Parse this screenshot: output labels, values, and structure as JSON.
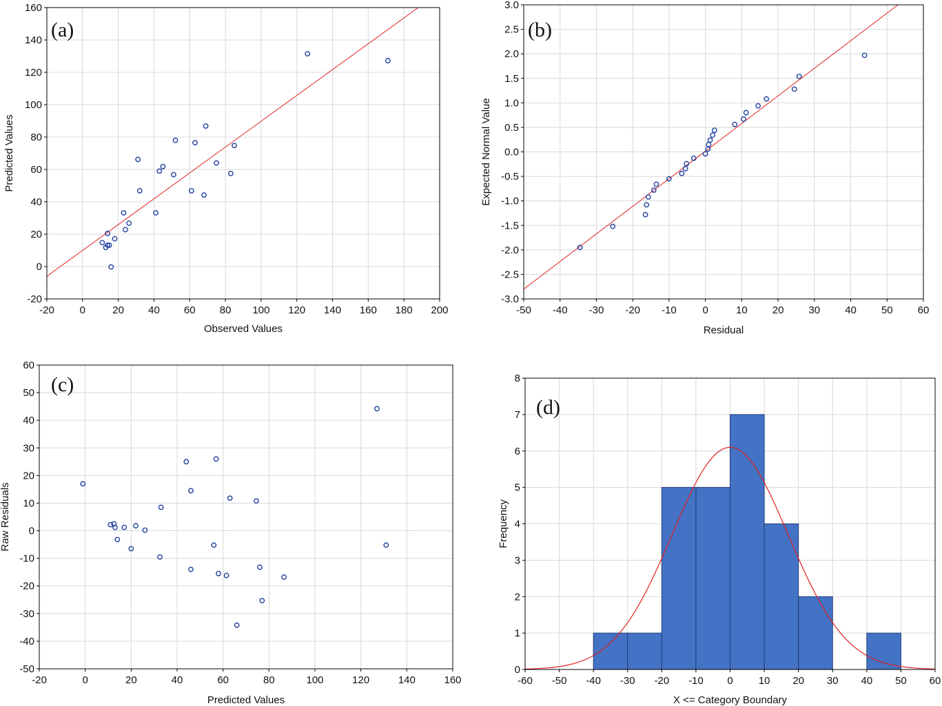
{
  "colors": {
    "points": "#1f3fa0",
    "fit_line": "#e02020",
    "bars": "#4472c4",
    "bar_edge": "#1f3e7a",
    "grid": "#d8d8d8"
  },
  "chart_data": [
    {
      "panel": "(a)",
      "type": "scatter",
      "xlabel": "Observed Values",
      "ylabel": "Predicted Values",
      "xlim": [
        -20,
        200
      ],
      "ylim": [
        -20,
        160
      ],
      "xticks": [
        -20,
        0,
        20,
        40,
        60,
        80,
        100,
        120,
        140,
        160,
        180,
        200
      ],
      "yticks": [
        -20,
        0,
        20,
        40,
        60,
        80,
        100,
        120,
        140,
        160
      ],
      "grid": true,
      "x": [
        11,
        13,
        14,
        15,
        16,
        14,
        18,
        23,
        24,
        26,
        31,
        32,
        41,
        43,
        45,
        51,
        52,
        61,
        63,
        68,
        69,
        75,
        83,
        85,
        126,
        171
      ],
      "y": [
        14.8,
        11.8,
        13.2,
        13.2,
        -0.2,
        20.5,
        17.2,
        33.2,
        22.8,
        26.8,
        66.2,
        46.8,
        33.2,
        59.0,
        61.8,
        56.8,
        78.0,
        46.8,
        76.5,
        44.2,
        86.8,
        64.0,
        57.5,
        74.8,
        131.5,
        127.2
      ],
      "fit_line": {
        "x": [
          -20,
          188
        ],
        "y": [
          -6,
          160
        ]
      }
    },
    {
      "panel": "(b)",
      "type": "scatter",
      "xlabel": "Residual",
      "ylabel": "Expected Normal Value",
      "xlim": [
        -50,
        60
      ],
      "ylim": [
        -3.0,
        3.0
      ],
      "xticks": [
        -50,
        -40,
        -30,
        -20,
        -10,
        0,
        10,
        20,
        30,
        40,
        50,
        60
      ],
      "yticks": [
        "-3.0",
        "-2.5",
        "-2.0",
        "-1.5",
        "-1.0",
        "-0.5",
        "0.0",
        "0.5",
        "1.0",
        "1.5",
        "2.0",
        "2.5",
        "3.0"
      ],
      "grid": true,
      "x": [
        -34.5,
        -25.5,
        -16.5,
        -16.2,
        -15.7,
        -14.2,
        -13.5,
        -10,
        -6.5,
        -5.5,
        -5.2,
        -3.2,
        0,
        0.7,
        0.9,
        1.3,
        2,
        2.5,
        8.1,
        10.5,
        11.2,
        14.5,
        16.8,
        24.5,
        25.8,
        43.8
      ],
      "y": [
        -1.95,
        -1.52,
        -1.28,
        -1.08,
        -0.92,
        -0.78,
        -0.66,
        -0.55,
        -0.44,
        -0.34,
        -0.24,
        -0.13,
        -0.04,
        0.06,
        0.15,
        0.24,
        0.34,
        0.44,
        0.56,
        0.67,
        0.8,
        0.94,
        1.08,
        1.28,
        1.54,
        1.97
      ],
      "fit_line": {
        "x": [
          -50,
          53
        ],
        "y": [
          -2.8,
          3.0
        ]
      }
    },
    {
      "panel": "(c)",
      "type": "scatter",
      "xlabel": "Predicted Values",
      "ylabel": "Raw Residuals",
      "xlim": [
        -20,
        160
      ],
      "ylim": [
        -50,
        60
      ],
      "xticks": [
        -20,
        0,
        20,
        40,
        60,
        80,
        100,
        120,
        140,
        160
      ],
      "yticks": [
        -50,
        -40,
        -30,
        -20,
        -10,
        0,
        10,
        20,
        30,
        40,
        50,
        60
      ],
      "grid": true,
      "x": [
        -1,
        11,
        12.5,
        13,
        14,
        17,
        20,
        22,
        26,
        32.5,
        33,
        44,
        46,
        46,
        56,
        57,
        58,
        61.5,
        63,
        66,
        74.5,
        76,
        77,
        86.5,
        127,
        131
      ],
      "y": [
        17,
        2.2,
        2.5,
        1.2,
        -3.2,
        1.2,
        -6.5,
        1.8,
        0.2,
        -9.5,
        8.5,
        25,
        14.5,
        -14,
        -5.2,
        26,
        -15.5,
        -16.2,
        11.8,
        -34.2,
        10.8,
        -13.2,
        -25.3,
        -16.8,
        44.2,
        -5.2
      ]
    },
    {
      "panel": "(d)",
      "type": "bar",
      "xlabel": "X <= Category Boundary",
      "ylabel": "Frequency",
      "xlim": [
        -60,
        60
      ],
      "ylim": [
        0,
        8
      ],
      "xticks": [
        -60,
        -50,
        -40,
        -30,
        -20,
        -10,
        0,
        10,
        20,
        30,
        40,
        50,
        60
      ],
      "yticks": [
        0,
        1,
        2,
        3,
        4,
        5,
        6,
        7,
        8
      ],
      "grid": true,
      "bins": [
        -40,
        -30,
        -20,
        -10,
        0,
        10,
        20,
        30,
        40,
        50
      ],
      "counts": [
        1,
        1,
        5,
        5,
        7,
        4,
        2,
        0,
        1
      ],
      "normal_curve": {
        "mean": 0,
        "sd": 17,
        "n": 26,
        "bin_width": 10
      }
    }
  ]
}
